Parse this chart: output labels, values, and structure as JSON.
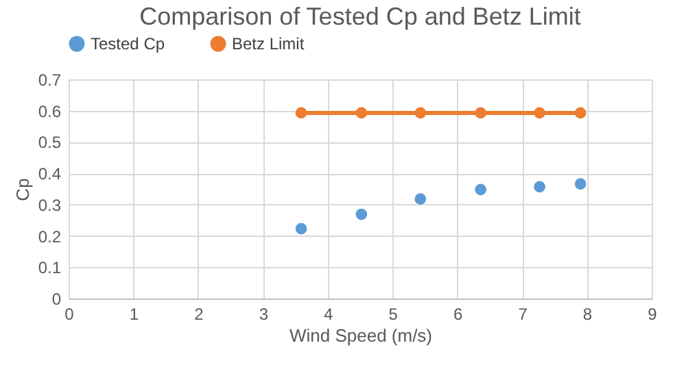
{
  "chart_data": {
    "type": "scatter",
    "title": "Comparison of Tested Cp and Betz Limit",
    "xlabel": "Wind Speed (m/s)",
    "ylabel": "Cp",
    "x": [
      3.59,
      4.52,
      5.43,
      6.36,
      7.27,
      7.9
    ],
    "series": [
      {
        "name": "Tested Cp",
        "color": "#5b9bd5",
        "values": [
          0.223,
          0.269,
          0.318,
          0.348,
          0.357,
          0.366
        ]
      },
      {
        "name": "Betz Limit",
        "type": "line",
        "color": "#ed7d31",
        "values": [
          0.593,
          0.593,
          0.593,
          0.593,
          0.593,
          0.593
        ]
      }
    ],
    "xlim": [
      0,
      9
    ],
    "xticks": [
      0,
      1,
      2,
      3,
      4,
      5,
      6,
      7,
      8,
      9
    ],
    "ylim": [
      0,
      0.7
    ],
    "yticks": [
      0,
      0.1,
      0.2,
      0.3,
      0.4,
      0.5,
      0.6,
      0.7
    ],
    "grid": true,
    "legend": "top",
    "marker": "circle"
  }
}
